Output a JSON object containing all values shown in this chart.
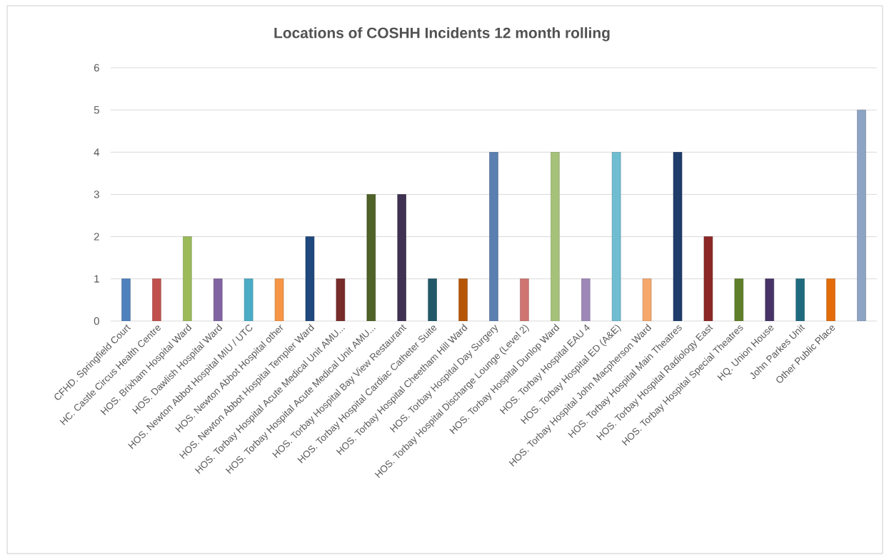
{
  "chart_data": {
    "type": "bar",
    "title": "Locations of COSHH Incidents 12 month rolling",
    "categories": [
      "CFHD. Springfield Court",
      "HC. Castle Circus Health Centre",
      "HOS. Brixham Hospital Ward",
      "HOS. Dawlish Hospital Ward",
      "HOS. Newton Abbot Hospital MIU / UTC",
      "HOS. Newton Abbot Hospital other",
      "HOS. Newton Abbot Hospital Templer Ward",
      "HOS. Torbay Hospital Acute Medical Unit AMU...",
      "HOS. Torbay Hospital Acute Medical Unit AMU...",
      "HOS. Torbay Hospital Bay View Restaurant",
      "HOS. Torbay Hospital Cardiac Catheter Suite",
      "HOS. Torbay Hospital Cheetham Hill Ward",
      "HOS. Torbay Hospital Day Surgery",
      "HOS. Torbay Hospital Discharge Lounge (Level 2)",
      "HOS. Torbay Hospital Dunlop Ward",
      "HOS. Torbay Hospital EAU 4",
      "HOS. Torbay Hospital ED (A&E)",
      "HOS. Torbay Hospital John Macpherson Ward",
      "HOS. Torbay Hospital Main Theatres",
      "HOS. Torbay Hospital Radiology East",
      "HOS. Torbay Hospital Special Theatres",
      "HQ. Union House",
      "John Parkes Unit",
      "Other Public Place",
      null
    ],
    "values": [
      1,
      1,
      2,
      1,
      1,
      1,
      2,
      1,
      3,
      3,
      1,
      1,
      4,
      1,
      4,
      1,
      4,
      1,
      4,
      2,
      1,
      1,
      1,
      1,
      5
    ],
    "colors": [
      "#4f81bd",
      "#c0504d",
      "#9bbb59",
      "#8064a2",
      "#4bacc6",
      "#f79646",
      "#1f497d",
      "#772c2a",
      "#4f6228",
      "#3f3151",
      "#215968",
      "#b65708",
      "#5a7fb0",
      "#d07471",
      "#a6c27a",
      "#9d88b8",
      "#6fbdd1",
      "#f5a86a",
      "#1f3d6b",
      "#8b2826",
      "#5f7f2a",
      "#473366",
      "#1e6a7e",
      "#e36c09",
      "#8da4c4"
    ],
    "ylim": [
      0,
      6
    ],
    "yticks": [
      0,
      1,
      2,
      3,
      4,
      5,
      6
    ],
    "grid": "y"
  }
}
